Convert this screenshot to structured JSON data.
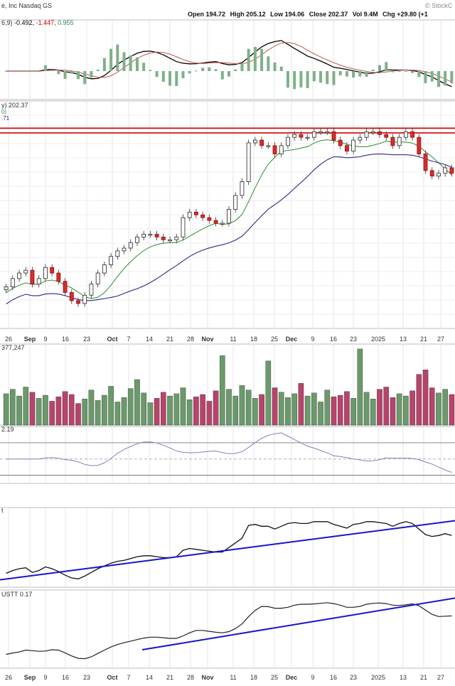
{
  "header": {
    "symbol_text": "e, Inc Nasdaq GS",
    "watermark": "© StockC",
    "ohlc": [
      {
        "label": "Open",
        "value": "194.72"
      },
      {
        "label": "High",
        "value": "205.12"
      },
      {
        "label": "Low",
        "value": "194.06"
      },
      {
        "label": "Close",
        "value": "202.37"
      },
      {
        "label": "Vol",
        "value": "9.4M"
      },
      {
        "label": "Chg",
        "value": "+29.80 (+1"
      }
    ]
  },
  "panels": {
    "macd": {
      "legend_prefix": "6,9)",
      "legend_values": [
        "-0.492,",
        "-1.447,",
        "0.955"
      ],
      "legend_colors": [
        "#000000",
        "#cc0000",
        "#2e8b57"
      ]
    },
    "price": {
      "legend_line1": "y) 202.37",
      "legend_line2": "0)",
      "legend_line3": ".71"
    },
    "volume": {
      "legend": "377,247"
    },
    "rsi": {
      "legend": "2.19"
    },
    "pane4": {
      "legend": "t"
    },
    "pane5": {
      "legend": "USTT 0.17"
    }
  },
  "colors": {
    "up": "#2e7d32",
    "down": "#d32f2f",
    "ma_fast": "#2e8b2e",
    "ma_slow": "#2a2a8a",
    "resistance": "#d40000",
    "trendline": "#1515cc",
    "vol_up": "#6a9a6a",
    "vol_down": "#b8436b"
  },
  "chart_data": {
    "type": "line",
    "x_axis_labels": [
      "26",
      "Sep",
      "9",
      "16",
      "23",
      "Oct",
      "7",
      "14",
      "21",
      "28",
      "Nov",
      "11",
      "18",
      "25",
      "Dec",
      "9",
      "16",
      "23",
      "2025",
      "13",
      "21",
      "27"
    ],
    "price": {
      "close_approx": [
        165,
        168,
        170,
        171,
        166,
        168,
        172,
        170,
        167,
        163,
        160,
        159,
        162,
        166,
        170,
        173,
        176,
        178,
        179,
        181,
        183,
        184,
        184,
        183,
        182,
        182,
        183,
        190,
        192,
        191,
        190,
        189,
        188,
        188,
        193,
        198,
        203,
        217,
        218,
        216,
        216,
        213,
        216,
        219,
        220,
        219,
        219,
        221,
        221,
        221,
        218,
        216,
        214,
        218,
        219,
        221,
        221,
        220,
        219,
        216,
        219,
        221,
        219,
        213,
        207,
        205,
        206,
        208,
        206
      ],
      "resistance_levels": [
        222.3,
        220.6
      ]
    },
    "volume": {
      "values_millions": [
        4.2,
        4.8,
        3.9,
        5.1,
        4.4,
        3.6,
        4.0,
        3.2,
        3.8,
        4.5,
        4.1,
        2.9,
        3.5,
        4.7,
        3.3,
        4.0,
        5.2,
        3.1,
        3.7,
        4.9,
        6.1,
        4.3,
        3.0,
        3.6,
        4.4,
        3.9,
        4.2,
        5.0,
        3.4,
        3.8,
        4.1,
        3.2,
        4.6,
        9.3,
        4.8,
        3.9,
        5.3,
        4.7,
        3.6,
        4.1,
        8.6,
        5.0,
        4.4,
        3.7,
        4.2,
        5.6,
        3.9,
        4.3,
        3.1,
        4.7,
        3.8,
        4.0,
        4.5,
        3.6,
        10.2,
        4.4,
        3.5,
        4.8,
        5.1,
        3.7,
        4.2,
        3.9,
        4.6,
        6.8,
        7.4,
        5.0,
        4.3,
        4.8,
        4.1
      ]
    },
    "rsi_levels": [
      70,
      50,
      30
    ]
  }
}
